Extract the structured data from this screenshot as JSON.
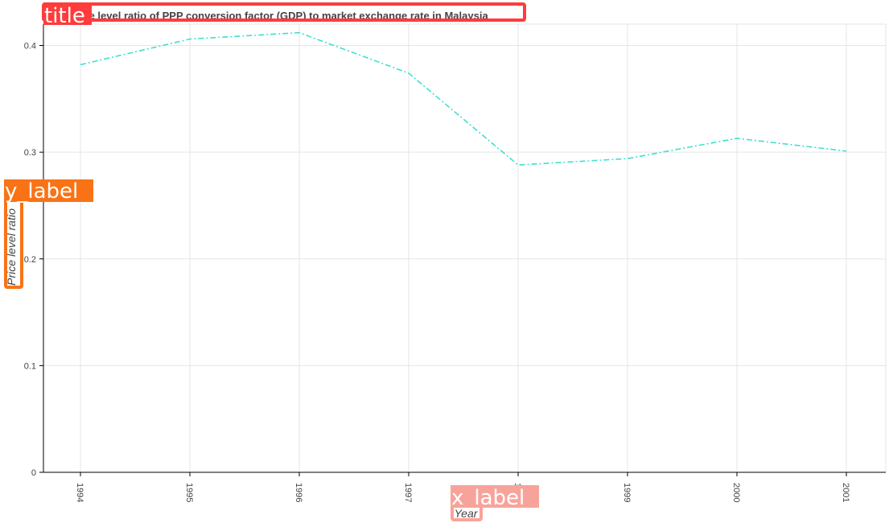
{
  "annotations": {
    "title_tag": "title",
    "y_label_tag": "y_label",
    "x_label_tag": "x_label",
    "colors": {
      "title": "#ff3b3b",
      "y_label": "#f97316",
      "x_label": "#f8a39a"
    }
  },
  "chart_data": {
    "type": "line",
    "title": "Price level ratio of PPP conversion factor (GDP) to market exchange rate in Malaysia",
    "xlabel": "Year",
    "ylabel": "Price level ratio",
    "x": [
      1994,
      1995,
      1996,
      1997,
      1998,
      1999,
      2000,
      2001
    ],
    "x_tick_labels": [
      "1994",
      "1995",
      "1996",
      "1997",
      "1998",
      "1999",
      "2000",
      "2001"
    ],
    "series": [
      {
        "values": [
          0.382,
          0.406,
          0.412,
          0.374,
          0.288,
          0.294,
          0.313,
          0.301
        ],
        "color": "#40e0d0",
        "style": "dashdot"
      }
    ],
    "ylim": [
      0,
      0.42
    ],
    "y_ticks": [
      0,
      0.1,
      0.2,
      0.3,
      0.4
    ],
    "y_tick_labels": [
      "0",
      "0.1",
      "0.2",
      "0.3",
      "0.4"
    ],
    "grid": true
  }
}
